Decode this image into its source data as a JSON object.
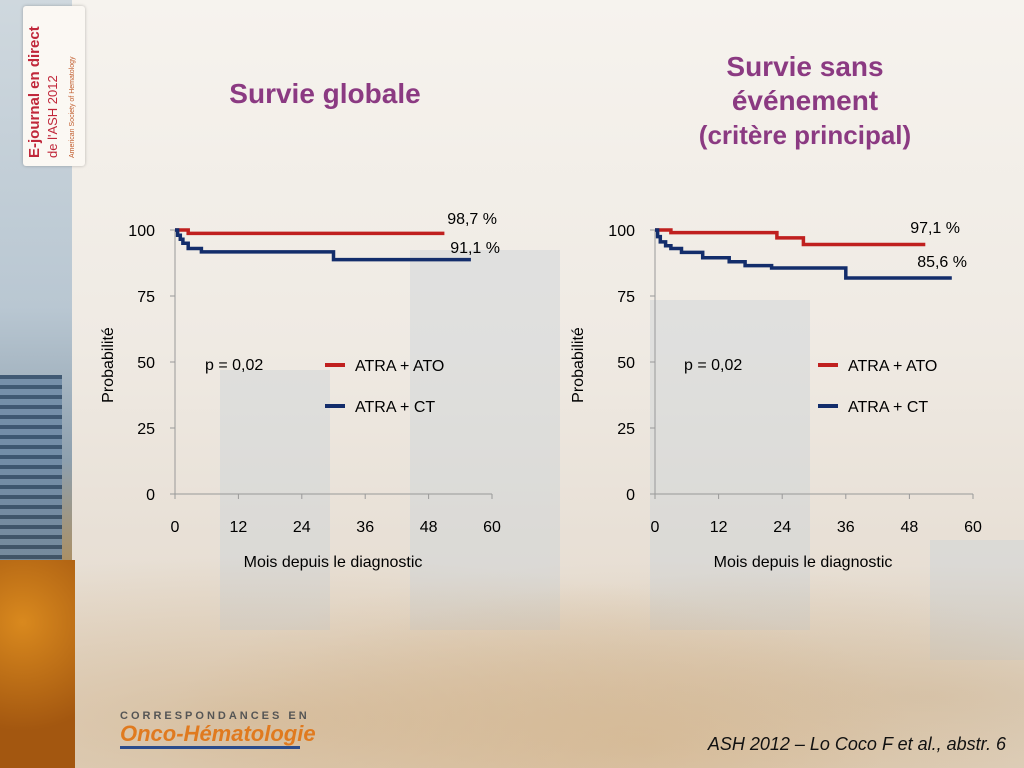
{
  "badge": {
    "line1": "E-journal en direct",
    "line2": "de l'ASH 2012",
    "line3": "American Society of Hematology"
  },
  "titles": {
    "left": "Survie globale",
    "right_line1": "Survie sans",
    "right_line2": "événement",
    "right_line3": "(critère principal)"
  },
  "colors": {
    "title": "#8b3a82",
    "ato": "#c0201f",
    "ct": "#132d6b"
  },
  "chart_data": [
    {
      "type": "line",
      "title": "Survie globale",
      "xlabel": "Mois depuis le diagnostic",
      "ylabel": "Probabilité",
      "xticks": [
        "0",
        "12",
        "24",
        "36",
        "48",
        "60"
      ],
      "yticks": [
        "0",
        "25",
        "50",
        "75",
        "100"
      ],
      "xlim": [
        0,
        60
      ],
      "ylim": [
        0,
        100
      ],
      "pvalue": "p = 0,02",
      "series": [
        {
          "name": "ATRA + ATO",
          "color": "#c0201f",
          "end_label": "98,7 %",
          "x": [
            0,
            2.5,
            2.5,
            51
          ],
          "y": [
            100,
            100,
            98.7,
            98.7
          ]
        },
        {
          "name": "ATRA + CT",
          "color": "#132d6b",
          "end_label": "91,1 %",
          "x": [
            0,
            0.5,
            0.5,
            1.0,
            1.0,
            1.5,
            1.5,
            2.5,
            2.5,
            5,
            5,
            30,
            30,
            56
          ],
          "y": [
            100,
            100,
            98,
            98,
            96.5,
            96.5,
            95,
            95,
            93,
            93,
            91.7,
            91.7,
            88.8,
            88.8
          ]
        }
      ]
    },
    {
      "type": "line",
      "title": "Survie sans événement",
      "xlabel": "Mois depuis le diagnostic",
      "ylabel": "Probabilité",
      "xticks": [
        "0",
        "12",
        "24",
        "36",
        "48",
        "60"
      ],
      "yticks": [
        "0",
        "25",
        "50",
        "75",
        "100"
      ],
      "xlim": [
        0,
        60
      ],
      "ylim": [
        0,
        100
      ],
      "pvalue": "p = 0,02",
      "series": [
        {
          "name": "ATRA + ATO",
          "color": "#c0201f",
          "end_label": "97,1 %",
          "x": [
            0,
            3,
            3,
            23,
            23,
            28,
            28,
            51
          ],
          "y": [
            100,
            100,
            99,
            99,
            97,
            97,
            94.5,
            94.5
          ]
        },
        {
          "name": "ATRA + CT",
          "color": "#132d6b",
          "end_label": "85,6 %",
          "x": [
            0,
            0.5,
            0.5,
            1,
            1,
            2,
            2,
            3,
            3,
            5,
            5,
            9,
            9,
            14,
            14,
            17,
            17,
            22,
            22,
            36,
            36,
            56
          ],
          "y": [
            100,
            100,
            97.5,
            97.5,
            95.5,
            95.5,
            94,
            94,
            93,
            93,
            91.5,
            91.5,
            89.5,
            89.5,
            88,
            88,
            86.5,
            86.5,
            85.6,
            85.6,
            81.8,
            81.8
          ]
        }
      ]
    }
  ],
  "reference": "ASH 2012 – Lo Coco F et al., abstr. 6",
  "logo": {
    "top": "CORRESPONDANCES EN",
    "main": "Onco-Hématologie"
  }
}
